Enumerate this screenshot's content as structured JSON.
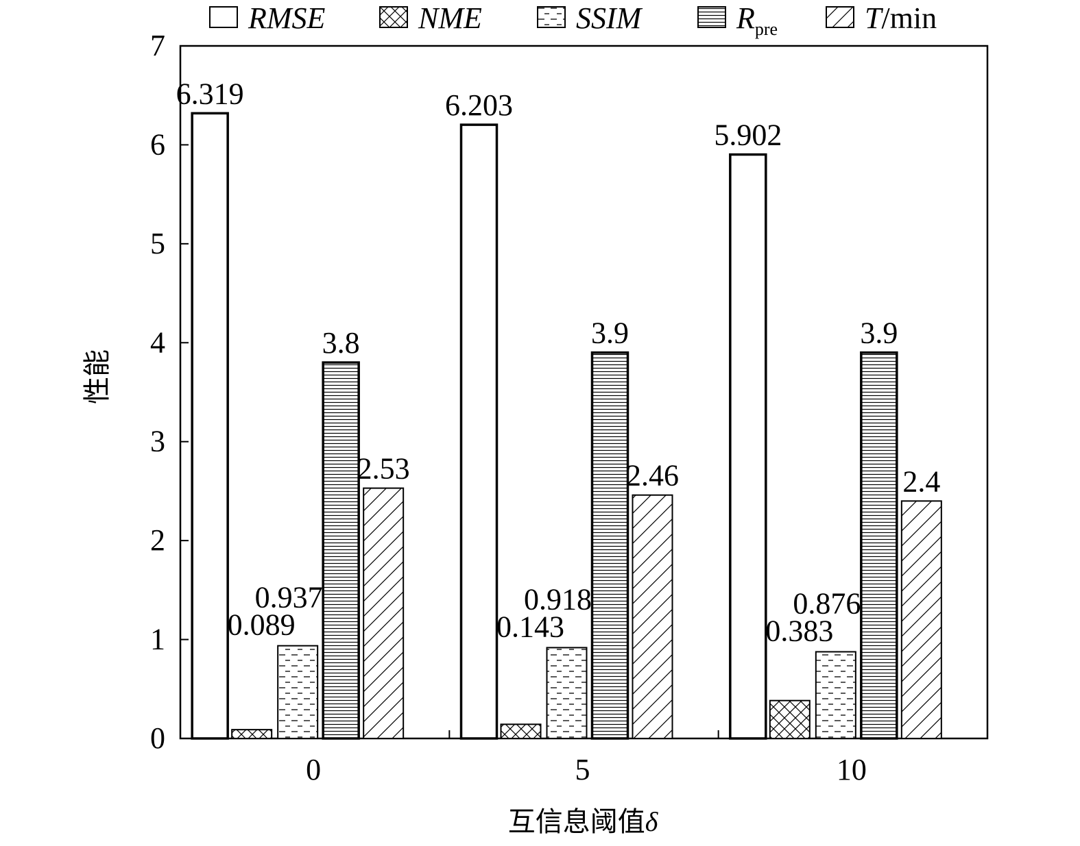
{
  "chart_data": {
    "type": "bar",
    "title": "",
    "xlabel": "互信息阈值",
    "xlabel_symbol": "δ",
    "ylabel": "性能",
    "categories": [
      "0",
      "5",
      "10"
    ],
    "ylim": [
      0,
      7
    ],
    "yticks": [
      "0",
      "1",
      "2",
      "3",
      "4",
      "5",
      "6",
      "7"
    ],
    "legend_position": "top",
    "series": [
      {
        "name": "RMSE",
        "pattern": "empty",
        "values": [
          6.319,
          6.203,
          5.902
        ],
        "labels": [
          "6.319",
          "6.203",
          "5.902"
        ]
      },
      {
        "name": "NME",
        "pattern": "crosshatch",
        "values": [
          0.089,
          0.143,
          0.383
        ],
        "labels": [
          "0.089",
          "0.143",
          "0.383"
        ]
      },
      {
        "name": "SSIM",
        "pattern": "dashes",
        "values": [
          0.937,
          0.918,
          0.876
        ],
        "labels": [
          "0.937",
          "0.918",
          "0.876"
        ]
      },
      {
        "name": "R",
        "name_sub": "pre",
        "pattern": "hlines",
        "values": [
          3.8,
          3.9,
          3.9
        ],
        "labels": [
          "3.8",
          "3.9",
          "3.9"
        ]
      },
      {
        "name": "T",
        "name_suffix": "/min",
        "pattern": "diagonal",
        "values": [
          2.53,
          2.46,
          2.4
        ],
        "labels": [
          "2.53",
          "2.46",
          "2.4"
        ]
      }
    ]
  }
}
